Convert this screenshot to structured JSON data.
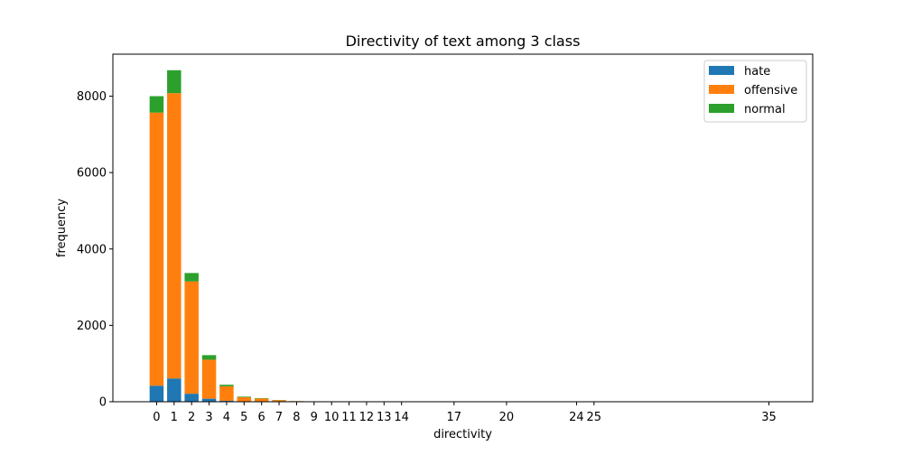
{
  "chart_data": {
    "type": "bar",
    "stacked": true,
    "title": "Directivity of text among 3 class",
    "xlabel": "directivity",
    "ylabel": "frequency",
    "x": [
      0,
      1,
      2,
      3,
      4,
      5,
      6,
      7,
      8,
      9,
      10,
      11,
      12,
      13,
      14,
      17,
      20,
      24,
      25,
      35
    ],
    "xticks": [
      0,
      1,
      2,
      3,
      4,
      5,
      6,
      7,
      8,
      9,
      10,
      11,
      12,
      13,
      14,
      17,
      20,
      24,
      25,
      35
    ],
    "xlim": [
      -2.5,
      37.5
    ],
    "ylim": [
      0,
      9100
    ],
    "yticks": [
      0,
      2000,
      4000,
      6000,
      8000
    ],
    "grid": false,
    "legend_position": "top-right",
    "series": [
      {
        "name": "hate",
        "color": "#1f77b4",
        "values": [
          420,
          610,
          210,
          80,
          25,
          10,
          5,
          2,
          1,
          0,
          0,
          0,
          0,
          0,
          0,
          0,
          0,
          0,
          0,
          0
        ]
      },
      {
        "name": "offensive",
        "color": "#ff7f0e",
        "values": [
          7150,
          7470,
          2940,
          1020,
          380,
          110,
          80,
          40,
          15,
          6,
          3,
          2,
          1,
          1,
          1,
          1,
          1,
          1,
          1,
          1
        ]
      },
      {
        "name": "normal",
        "color": "#2ca02c",
        "values": [
          430,
          600,
          220,
          120,
          40,
          15,
          10,
          5,
          2,
          1,
          1,
          0,
          0,
          0,
          0,
          0,
          0,
          0,
          0,
          0
        ]
      }
    ]
  }
}
